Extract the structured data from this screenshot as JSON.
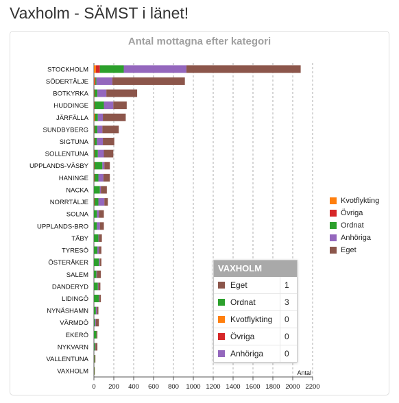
{
  "page": {
    "title": "Vaxholm - SÄMST i länet!"
  },
  "chart_data": {
    "type": "bar",
    "orientation": "horizontal",
    "stacked": true,
    "title": "Antal mottagna efter kategori",
    "xlabel": "Antal",
    "ylabel": "",
    "xlim": [
      0,
      2200
    ],
    "xticks": [
      "0",
      "200",
      "400",
      "600",
      "800",
      "1000",
      "1200",
      "1400",
      "1600",
      "1800",
      "2000",
      "2200"
    ],
    "grid": "vertical dashed",
    "legend_position": "right",
    "categories": [
      "STOCKHOLM",
      "SÖDERTÄLJE",
      "BOTKYRKA",
      "HUDDINGE",
      "JÄRFÄLLA",
      "SUNDBYBERG",
      "SIGTUNA",
      "SOLLENTUNA",
      "UPPLANDS-VÄSBY",
      "HANINGE",
      "NACKA",
      "NORRTÄLJE",
      "SOLNA",
      "UPPLANDS-BRO",
      "TÄBY",
      "TYRESÖ",
      "ÖSTERÅKER",
      "SALEM",
      "DANDERYD",
      "LIDINGÖ",
      "NYNÄSHAMN",
      "VÄRMDÖ",
      "EKERÖ",
      "NYKVARN",
      "VALLENTUNA",
      "VAXHOLM"
    ],
    "series": [
      {
        "name": "Kvotflykting",
        "color": "#ff7f0e",
        "values": [
          20,
          5,
          0,
          0,
          5,
          0,
          0,
          0,
          0,
          0,
          0,
          0,
          0,
          0,
          0,
          0,
          0,
          0,
          0,
          0,
          0,
          0,
          0,
          0,
          0,
          0
        ]
      },
      {
        "name": "Övriga",
        "color": "#d62728",
        "values": [
          40,
          10,
          5,
          5,
          5,
          5,
          5,
          5,
          5,
          5,
          0,
          5,
          0,
          0,
          0,
          0,
          0,
          0,
          0,
          0,
          0,
          0,
          0,
          0,
          0,
          0
        ]
      },
      {
        "name": "Ordnat",
        "color": "#2ca02c",
        "values": [
          240,
          10,
          30,
          95,
          30,
          30,
          25,
          35,
          80,
          40,
          60,
          40,
          30,
          30,
          45,
          35,
          50,
          25,
          40,
          50,
          20,
          10,
          25,
          10,
          5,
          3
        ]
      },
      {
        "name": "Anhöriga",
        "color": "#9467bd",
        "values": [
          630,
          160,
          90,
          95,
          50,
          50,
          60,
          60,
          20,
          50,
          10,
          60,
          20,
          30,
          5,
          15,
          10,
          5,
          5,
          5,
          10,
          10,
          0,
          5,
          0,
          0
        ]
      },
      {
        "name": "Eget",
        "color": "#8c564b",
        "values": [
          1150,
          730,
          310,
          135,
          230,
          165,
          115,
          95,
          55,
          65,
          60,
          35,
          50,
          40,
          30,
          25,
          15,
          40,
          20,
          15,
          15,
          30,
          10,
          20,
          10,
          1
        ]
      }
    ]
  },
  "tooltip": {
    "title": "VAXHOLM",
    "rows": [
      {
        "name": "Eget",
        "color": "#8c564b",
        "value": "1"
      },
      {
        "name": "Ordnat",
        "color": "#2ca02c",
        "value": "3"
      },
      {
        "name": "Kvotflykting",
        "color": "#ff7f0e",
        "value": "0"
      },
      {
        "name": "Övriga",
        "color": "#d62728",
        "value": "0"
      },
      {
        "name": "Anhöriga",
        "color": "#9467bd",
        "value": "0"
      }
    ]
  }
}
